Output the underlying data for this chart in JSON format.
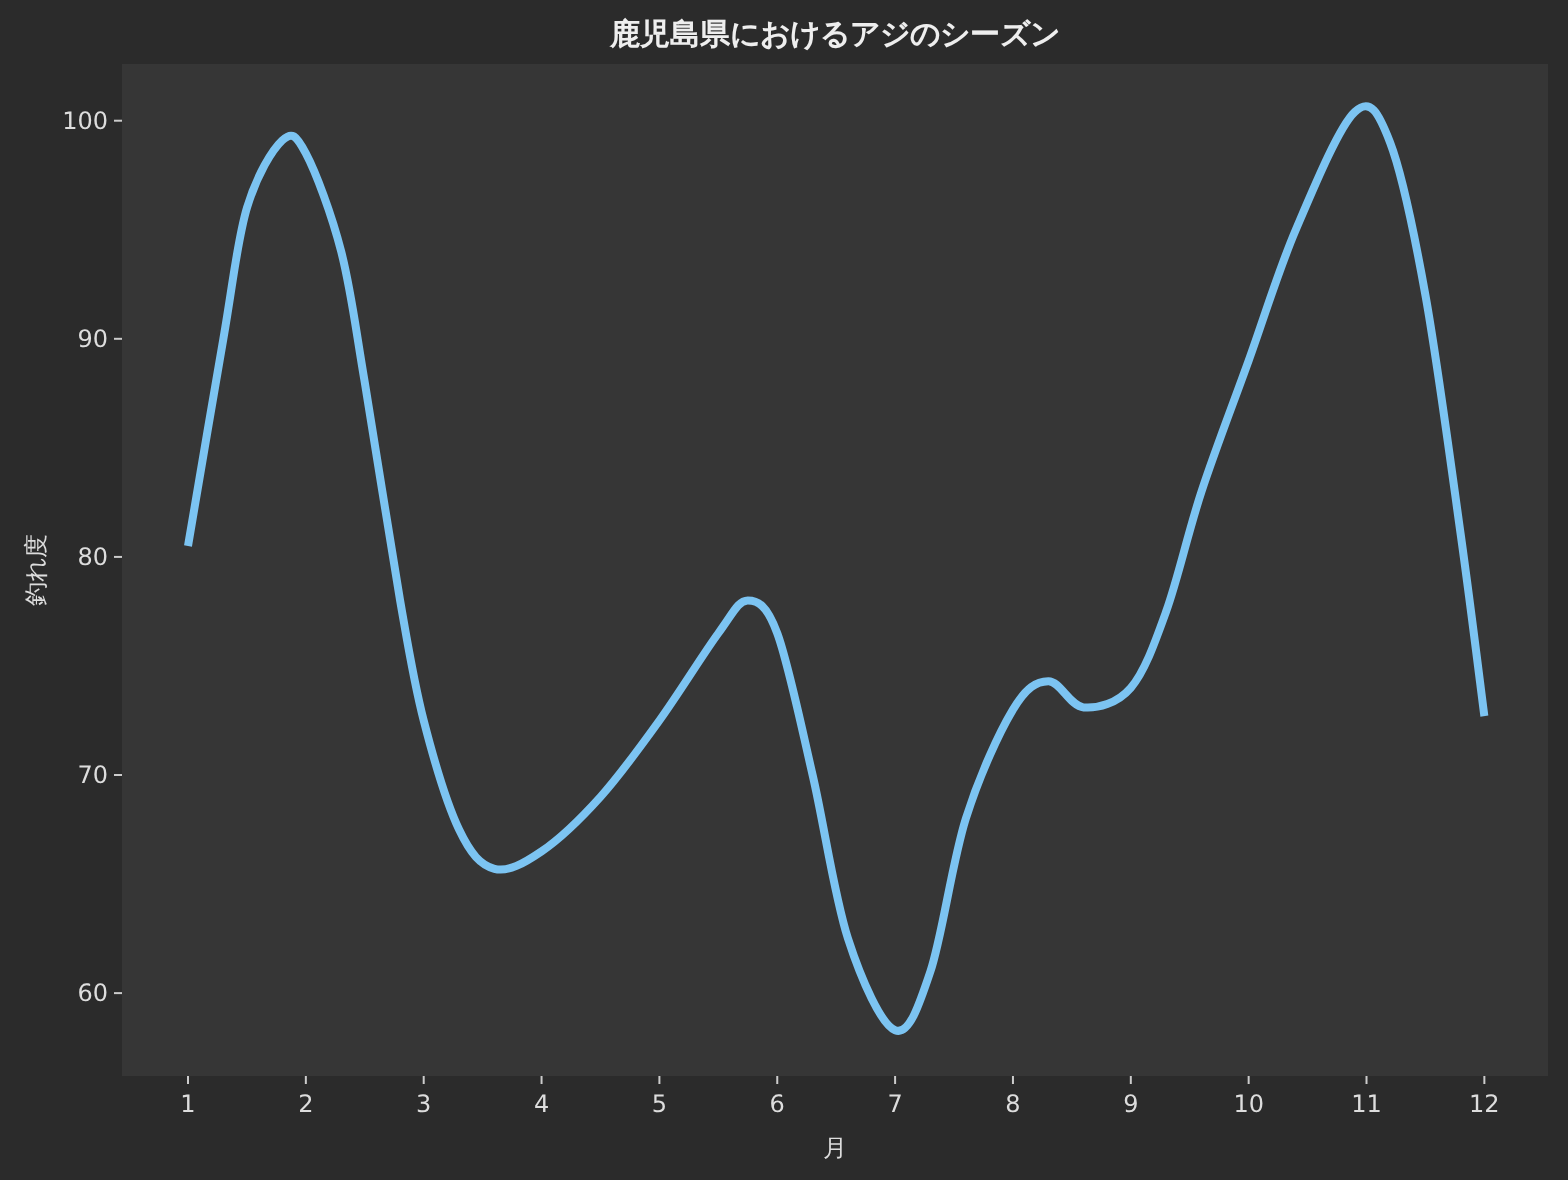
{
  "chart_data": {
    "type": "line",
    "title": "鹿児島県におけるアジのシーズン",
    "xlabel": "月",
    "ylabel": "釣れ度",
    "xlim": [
      0.44,
      12.54
    ],
    "ylim": [
      56.2,
      102.6
    ],
    "xticks": [
      1,
      2,
      3,
      4,
      5,
      6,
      7,
      8,
      9,
      10,
      11,
      12
    ],
    "yticks": [
      60,
      70,
      80,
      90,
      100
    ],
    "marker": "none",
    "line_style": "solid",
    "series": [
      {
        "color": "#7cc4f2",
        "x": [
          1.0,
          1.3,
          1.5,
          1.8,
          2.0,
          2.3,
          2.5,
          2.8,
          3.0,
          3.3,
          3.6,
          4.0,
          4.5,
          5.0,
          5.5,
          5.75,
          6.0,
          6.3,
          6.6,
          7.0,
          7.3,
          7.6,
          8.0,
          8.3,
          8.6,
          9.0,
          9.3,
          9.6,
          10.0,
          10.4,
          10.9,
          11.2,
          11.5,
          11.8,
          12.0
        ],
        "values": [
          80.5,
          90,
          96,
          99.1,
          98.5,
          94,
          88,
          78,
          72.5,
          67.5,
          65.7,
          66.5,
          69,
          72.5,
          76.5,
          78,
          76.5,
          70,
          62.5,
          58.3,
          61,
          68,
          73,
          74.3,
          73.1,
          74,
          77.5,
          83,
          89,
          95,
          100.4,
          99,
          92,
          81,
          72.7
        ]
      }
    ]
  }
}
